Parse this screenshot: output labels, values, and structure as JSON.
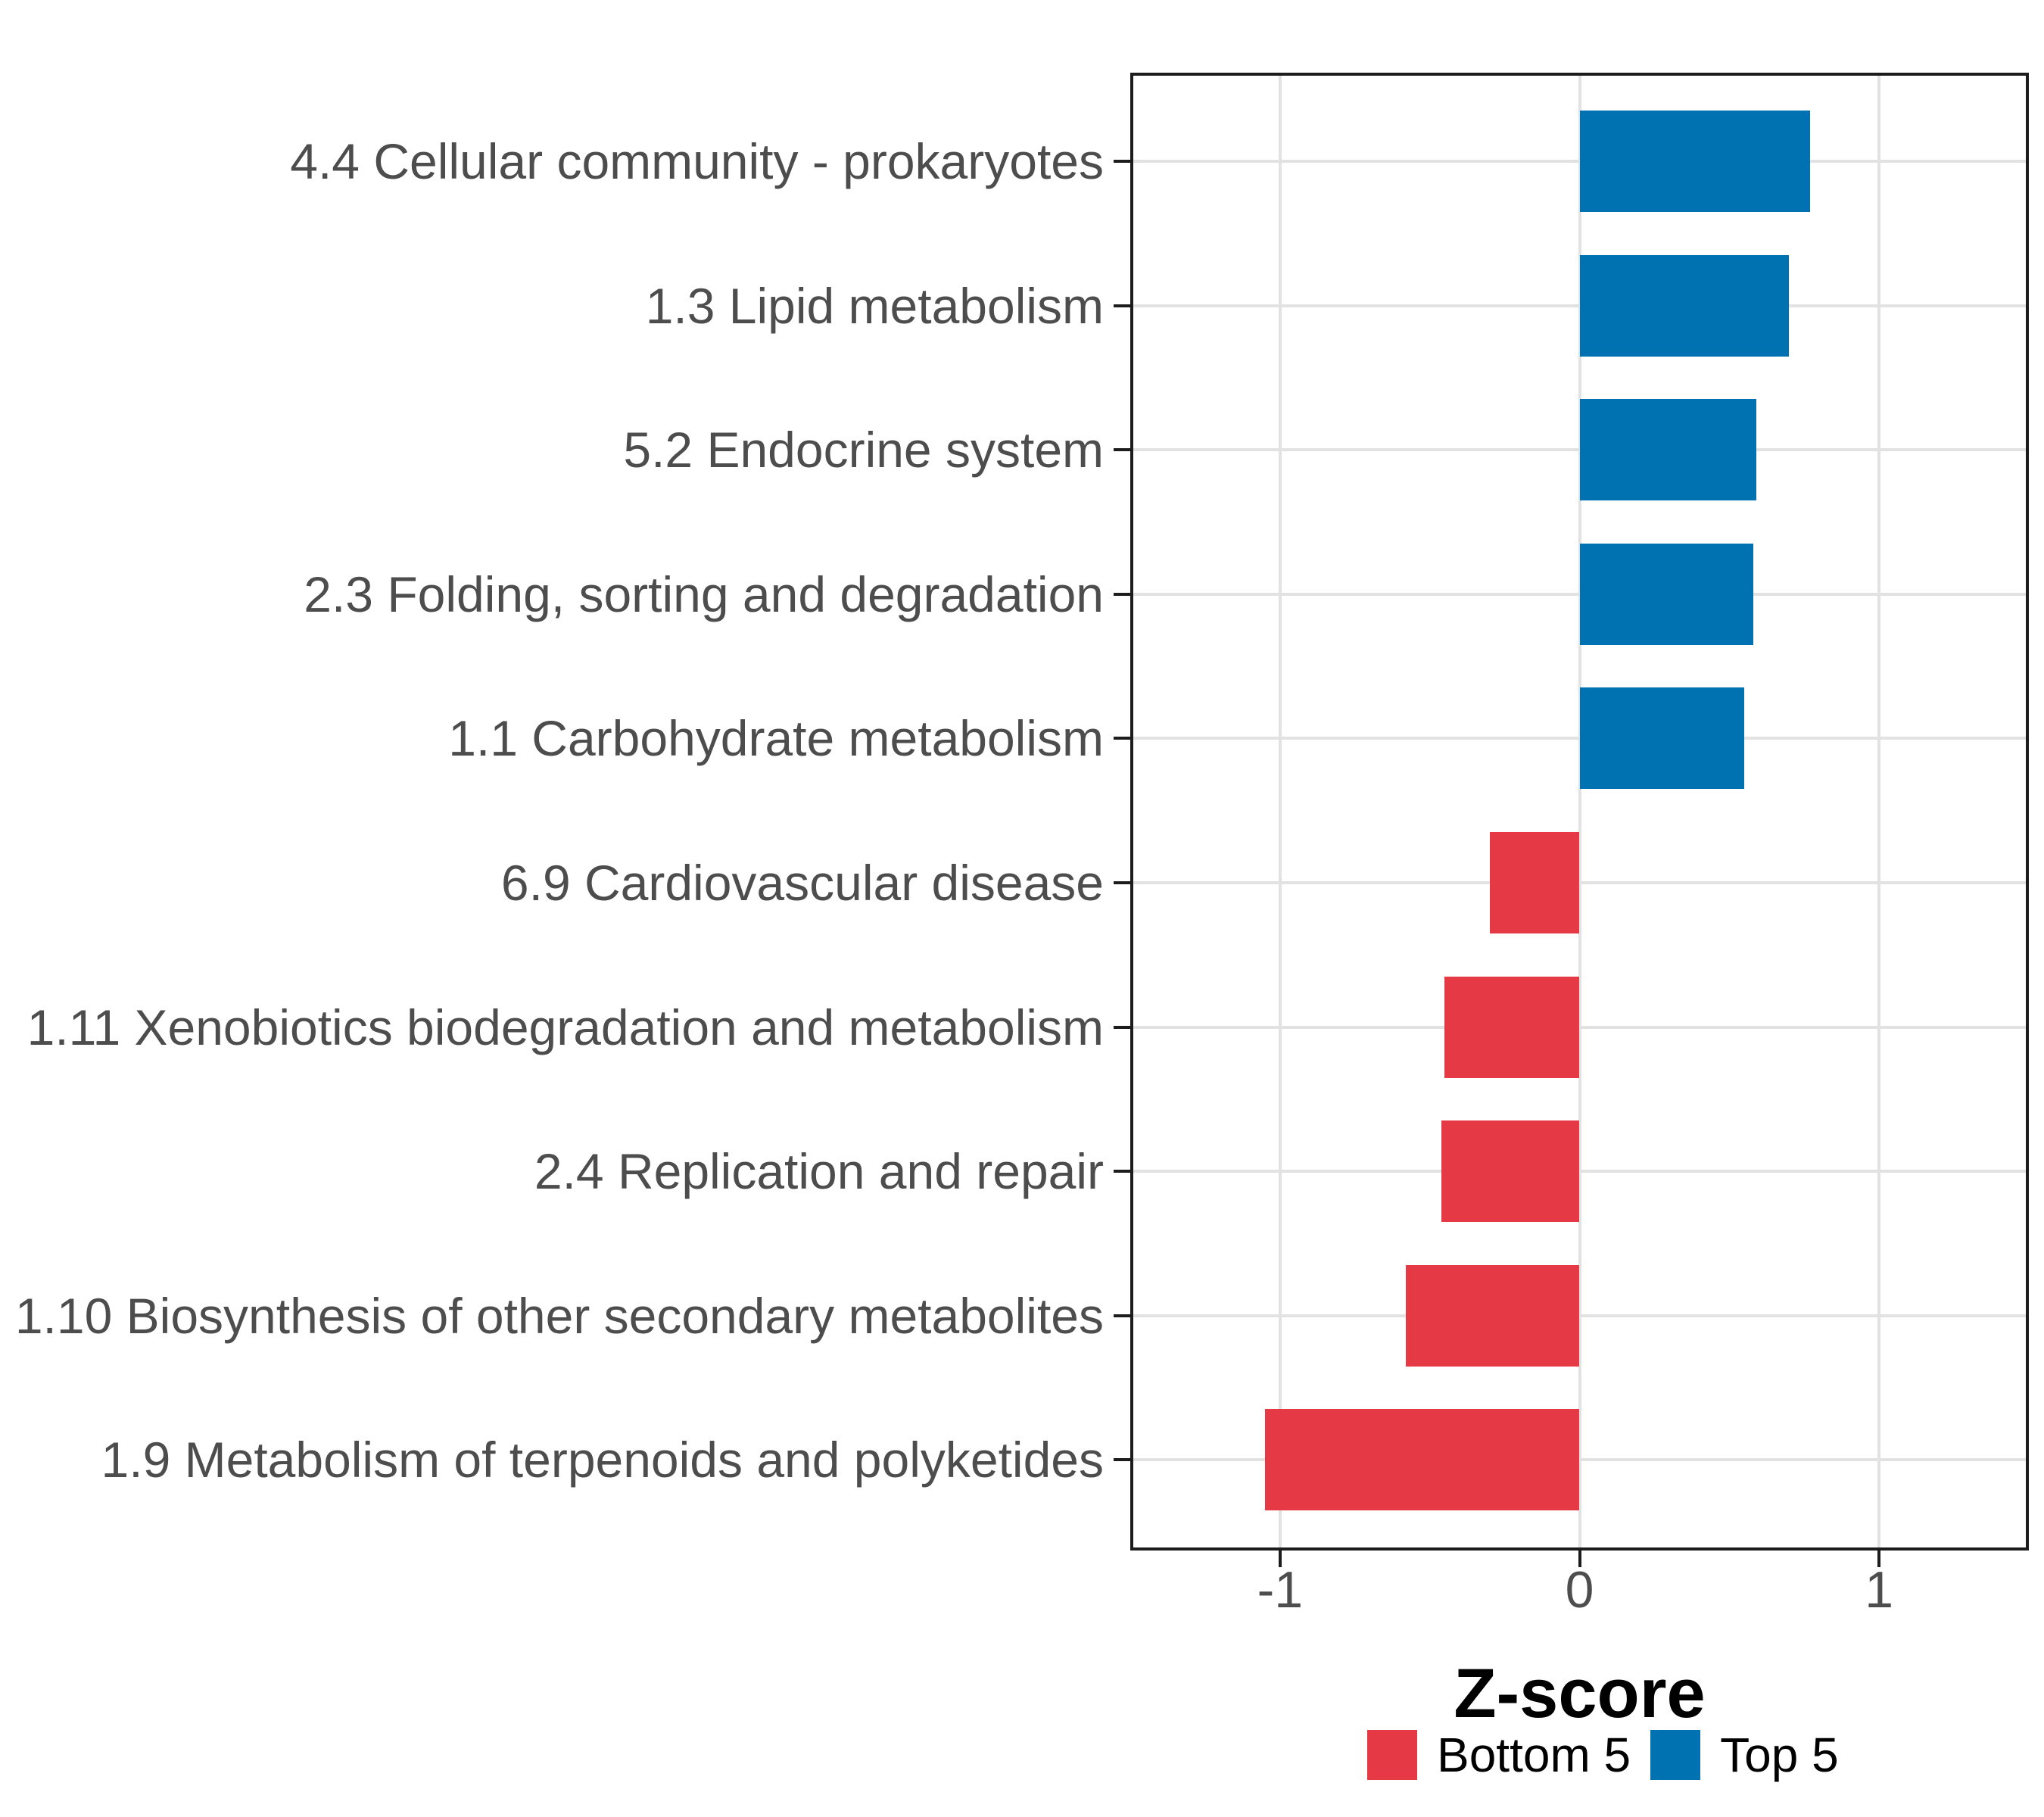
{
  "figure": {
    "background": "#ffffff",
    "axis_title": "Z-score",
    "axis_text_color": "#4d4d4d",
    "gridline_color": "#e2e2e2",
    "border_color": "#1c1c1c"
  },
  "chart_data": {
    "type": "bar",
    "orientation": "horizontal",
    "title": "",
    "xlabel": "Z-score",
    "ylabel": "",
    "xlim": [
      -1.5,
      1.5
    ],
    "x_ticks": [
      -1,
      0,
      1
    ],
    "x_tick_labels": [
      "-1",
      "0",
      "1"
    ],
    "grid": true,
    "legend_position": "bottom-right",
    "bars": [
      {
        "label": "4.4 Cellular community - prokaryotes",
        "value": 0.77,
        "group": "Top 5"
      },
      {
        "label": "1.3 Lipid metabolism",
        "value": 0.7,
        "group": "Top 5"
      },
      {
        "label": "5.2 Endocrine system",
        "value": 0.59,
        "group": "Top 5"
      },
      {
        "label": "2.3 Folding, sorting and degradation",
        "value": 0.58,
        "group": "Top 5"
      },
      {
        "label": "1.1 Carbohydrate metabolism",
        "value": 0.55,
        "group": "Top 5"
      },
      {
        "label": "6.9 Cardiovascular disease",
        "value": -0.3,
        "group": "Bottom 5"
      },
      {
        "label": "1.11 Xenobiotics biodegradation and metabolism",
        "value": -0.45,
        "group": "Bottom 5"
      },
      {
        "label": "2.4 Replication and repair",
        "value": -0.46,
        "group": "Bottom 5"
      },
      {
        "label": "1.10 Biosynthesis of other secondary metabolites",
        "value": -0.58,
        "group": "Bottom 5"
      },
      {
        "label": "1.9 Metabolism of terpenoids and polyketides",
        "value": -1.05,
        "group": "Bottom 5"
      }
    ],
    "legend": [
      {
        "label": "Bottom 5",
        "color": "#e63946"
      },
      {
        "label": "Top 5",
        "color": "#0072b2"
      }
    ]
  }
}
